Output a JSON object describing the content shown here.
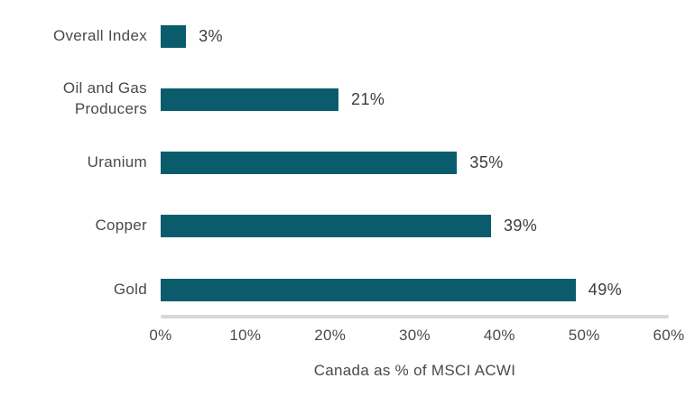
{
  "chart_data": {
    "type": "bar",
    "orientation": "horizontal",
    "categories": [
      "Overall Index",
      "Oil and Gas Producers",
      "Uranium",
      "Copper",
      "Gold"
    ],
    "values": [
      3,
      21,
      35,
      39,
      49
    ],
    "value_labels": [
      "3%",
      "21%",
      "35%",
      "39%",
      "49%"
    ],
    "xlabel": "Canada as % of MSCI ACWI",
    "ylabel": "",
    "xlim": [
      0,
      60
    ],
    "x_ticks": [
      "0%",
      "10%",
      "20%",
      "30%",
      "40%",
      "50%",
      "60%"
    ],
    "x_tick_values": [
      0,
      10,
      20,
      30,
      40,
      50,
      60
    ],
    "grid": false,
    "legend": false,
    "colors": {
      "bar": "#0a5c6d",
      "axis_line": "#d8d8d8",
      "category_label": "#4a4a4a",
      "value_label": "#3c3c3c",
      "tick_label": "#4a4a4a",
      "xlabel": "#4a4a4a",
      "background": "#ffffff"
    }
  }
}
